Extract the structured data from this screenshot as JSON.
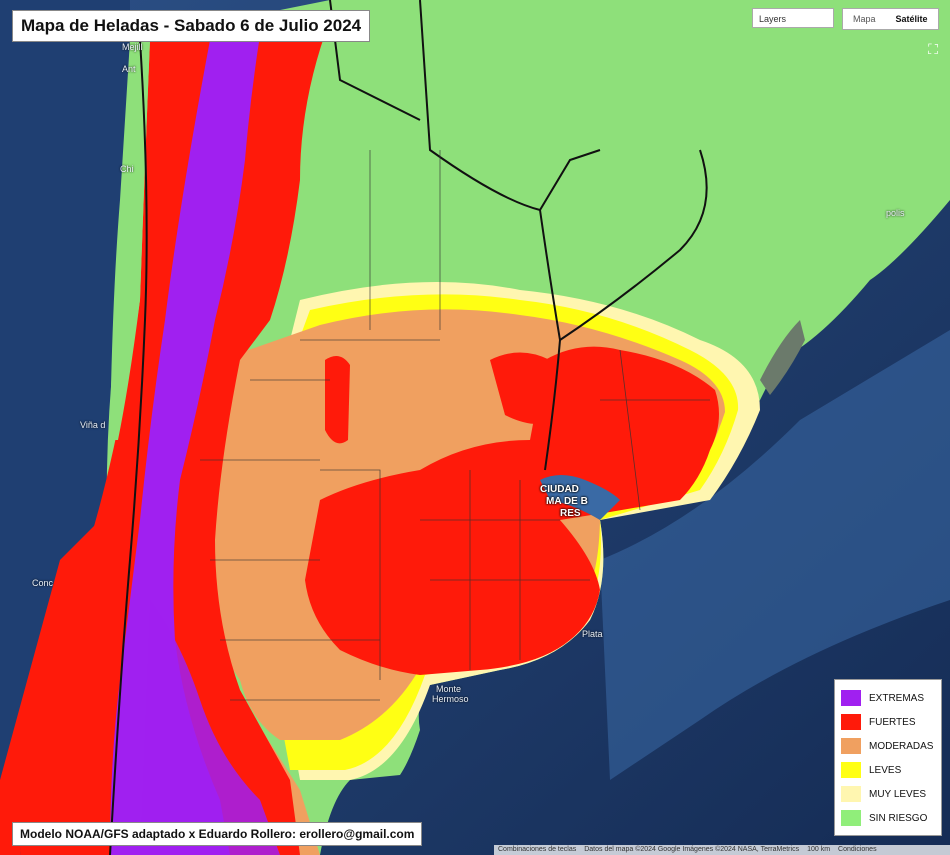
{
  "title": "Mapa de Heladas - Sabado 6 de Julio 2024",
  "credit": "Modelo NOAA/GFS adaptado x Eduardo Rollero: erollero@gmail.com",
  "controls": {
    "layers_label": "Layers",
    "map_type_options": [
      "Mapa",
      "Satélite"
    ],
    "map_type_selected": "Satélite"
  },
  "legend": [
    {
      "label": "EXTREMAS",
      "color": "#a020f0"
    },
    {
      "label": "FUERTES",
      "color": "#ff1a0a"
    },
    {
      "label": "MODERADAS",
      "color": "#f0a060"
    },
    {
      "label": "LEVES",
      "color": "#ffff14"
    },
    {
      "label": "MUY LEVES",
      "color": "#fff6b0"
    },
    {
      "label": "SIN RIESGO",
      "color": "#90ee7a"
    }
  ],
  "place_labels": {
    "mejillones": "Mejill",
    "antofagasta": "Ant",
    "chile_mid": "Chi",
    "vina": "Viña d",
    "concepcion": "Conc",
    "mar_del_plata": "Plata",
    "monte_hermoso_1": "Monte",
    "monte_hermoso_2": "Hermoso",
    "florianopolis": "polis",
    "buenos_aires_1": "CIUDAD",
    "buenos_aires_2": "MA DE B",
    "buenos_aires_3": "RES"
  },
  "attribution": [
    "Combinaciones de teclas",
    "Datos del mapa ©2024 Google Imágenes ©2024 NASA, TerraMetrics",
    "100 km",
    "Condiciones"
  ]
}
